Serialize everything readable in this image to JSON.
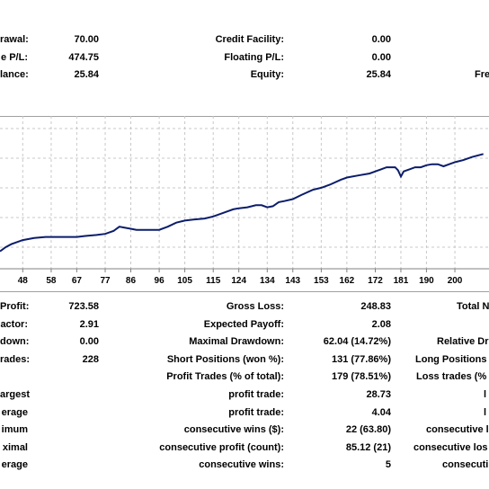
{
  "top": {
    "rows": [
      {
        "l1": "rawal:",
        "v1": "70.00",
        "l2": "Credit Facility:",
        "v2": "0.00",
        "l3": ""
      },
      {
        "l1": "e P/L:",
        "v1": "474.75",
        "l2": "Floating P/L:",
        "v2": "0.00",
        "l3": ""
      },
      {
        "l1": "lance:",
        "v1": "25.84",
        "l2": "Equity:",
        "v2": "25.84",
        "l3": "Fre"
      }
    ]
  },
  "chart_data": {
    "type": "line",
    "x_ticks": [
      "48",
      "58",
      "67",
      "77",
      "86",
      "96",
      "105",
      "115",
      "124",
      "134",
      "143",
      "153",
      "162",
      "172",
      "181",
      "190",
      "200"
    ],
    "xlim": [
      40,
      212
    ],
    "ylim": [
      0,
      100
    ],
    "series": [
      {
        "values": [
          [
            40,
            10
          ],
          [
            42,
            14
          ],
          [
            44,
            17
          ],
          [
            46,
            19
          ],
          [
            48,
            21
          ],
          [
            52,
            23
          ],
          [
            56,
            24
          ],
          [
            60,
            24
          ],
          [
            64,
            24
          ],
          [
            67,
            24
          ],
          [
            70,
            25
          ],
          [
            74,
            26
          ],
          [
            77,
            27
          ],
          [
            80,
            30
          ],
          [
            82,
            34
          ],
          [
            84,
            33
          ],
          [
            86,
            32
          ],
          [
            88,
            31
          ],
          [
            90,
            31
          ],
          [
            93,
            31
          ],
          [
            96,
            31
          ],
          [
            99,
            34
          ],
          [
            102,
            38
          ],
          [
            105,
            40
          ],
          [
            108,
            41
          ],
          [
            112,
            42
          ],
          [
            115,
            44
          ],
          [
            118,
            47
          ],
          [
            122,
            51
          ],
          [
            124,
            52
          ],
          [
            127,
            53
          ],
          [
            130,
            55
          ],
          [
            132,
            55
          ],
          [
            134,
            53
          ],
          [
            136,
            54
          ],
          [
            138,
            58
          ],
          [
            140,
            59
          ],
          [
            143,
            61
          ],
          [
            146,
            65
          ],
          [
            150,
            70
          ],
          [
            153,
            72
          ],
          [
            156,
            75
          ],
          [
            160,
            80
          ],
          [
            162,
            82
          ],
          [
            166,
            84
          ],
          [
            170,
            86
          ],
          [
            172,
            88
          ],
          [
            174,
            90
          ],
          [
            176,
            92
          ],
          [
            179,
            92
          ],
          [
            180,
            89
          ],
          [
            181,
            83
          ],
          [
            182,
            88
          ],
          [
            184,
            90
          ],
          [
            186,
            92
          ],
          [
            188,
            92
          ],
          [
            190,
            94
          ],
          [
            192,
            95
          ],
          [
            194,
            95
          ],
          [
            196,
            93
          ],
          [
            198,
            95
          ],
          [
            200,
            97
          ],
          [
            203,
            99
          ],
          [
            206,
            102
          ],
          [
            210,
            105
          ]
        ]
      }
    ],
    "grid": true
  },
  "bottom": {
    "rows": [
      {
        "l1": "Profit:",
        "v1": "723.58",
        "l2": "Gross Loss:",
        "v2": "248.83",
        "l3": "Total N"
      },
      {
        "l1": "actor:",
        "v1": "2.91",
        "l2": "Expected Payoff:",
        "v2": "2.08",
        "l3": ""
      },
      {
        "l1": "down:",
        "v1": "0.00",
        "l2": "Maximal Drawdown:",
        "v2": "62.04 (14.72%)",
        "l3": "Relative Dr"
      },
      {
        "l1": "rades:",
        "v1": "228",
        "l2": "Short Positions (won %):",
        "v2": "131 (77.86%)",
        "l3": "Long Positions ("
      },
      {
        "l1": "",
        "v1": "",
        "l2": "Profit Trades (% of total):",
        "v2": "179 (78.51%)",
        "l3": "Loss trades (%"
      },
      {
        "l1": "argest",
        "v1": "",
        "l2": "profit trade:",
        "v2": "28.73",
        "l3": "l"
      },
      {
        "l1": "erage",
        "v1": "",
        "l2": "profit trade:",
        "v2": "4.04",
        "l3": "l"
      },
      {
        "l1": "imum",
        "v1": "",
        "l2": "consecutive wins ($):",
        "v2": "22 (63.80)",
        "l3": "consecutive l"
      },
      {
        "l1": "ximal",
        "v1": "",
        "l2": "consecutive profit (count):",
        "v2": "85.12 (21)",
        "l3": "consecutive los"
      },
      {
        "l1": "erage",
        "v1": "",
        "l2": "consecutive wins:",
        "v2": "5",
        "l3": "consecuti"
      }
    ]
  },
  "colors": {
    "line": "#0b1d6b",
    "grid": "#c8c8c8",
    "axis": "#808080"
  }
}
